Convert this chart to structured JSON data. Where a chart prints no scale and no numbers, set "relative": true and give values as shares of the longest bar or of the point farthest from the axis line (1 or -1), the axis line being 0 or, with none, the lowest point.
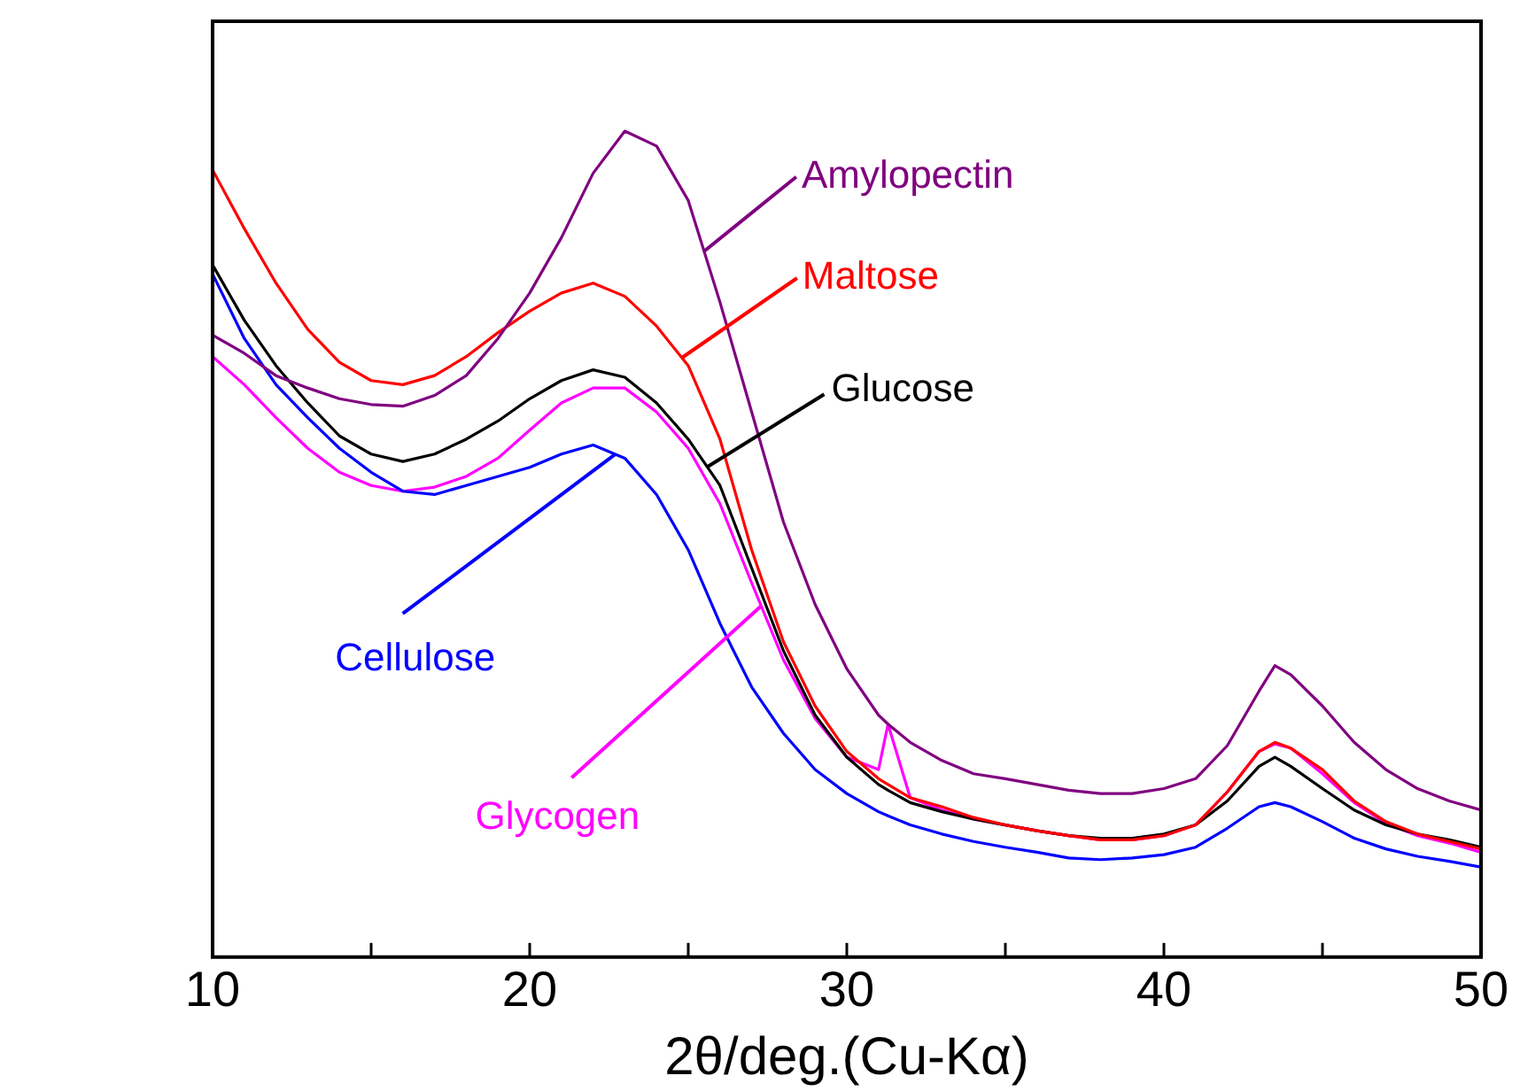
{
  "chart_data": {
    "type": "line",
    "xlabel": "2θ/deg.(Cu-Kα)",
    "relative": true,
    "grid": false,
    "legend": false,
    "marker": "none",
    "line_style": "solid",
    "tick_labels": "x",
    "xlim": [
      10,
      50
    ],
    "xticks": [
      10,
      {
        "value": 15,
        "label": null
      },
      20,
      {
        "value": 25,
        "label": null
      },
      30,
      {
        "value": 35,
        "label": null
      },
      40,
      {
        "value": 45,
        "label": null
      },
      50
    ],
    "x": [
      10,
      11,
      12,
      13,
      14,
      15,
      16,
      17,
      18,
      19,
      20,
      21,
      22,
      23,
      24,
      25,
      26,
      27,
      28,
      29,
      30,
      31,
      31.3,
      32,
      33,
      34,
      35,
      36,
      37,
      38,
      39,
      40,
      41,
      42,
      43,
      43.5,
      44,
      45,
      46,
      47,
      48,
      49,
      50
    ],
    "series": [
      {
        "name": "Amylopectin",
        "color": "#800080",
        "values": [
          0.753,
          0.731,
          0.704,
          0.689,
          0.676,
          0.669,
          0.667,
          0.68,
          0.704,
          0.749,
          0.804,
          0.871,
          0.949,
          1,
          0.982,
          0.916,
          0.793,
          0.66,
          0.527,
          0.427,
          0.349,
          0.293,
          0.282,
          0.26,
          0.238,
          0.222,
          0.216,
          0.209,
          0.202,
          0.198,
          0.198,
          0.204,
          0.216,
          0.256,
          0.322,
          0.353,
          0.342,
          0.304,
          0.26,
          0.227,
          0.204,
          0.189,
          0.178
        ]
      },
      {
        "name": "Maltose",
        "color": "#ff0000",
        "values": [
          0.953,
          0.882,
          0.816,
          0.76,
          0.72,
          0.698,
          0.693,
          0.704,
          0.727,
          0.756,
          0.782,
          0.804,
          0.816,
          0.8,
          0.764,
          0.716,
          0.627,
          0.493,
          0.382,
          0.304,
          0.249,
          0.216,
          0.209,
          0.193,
          0.182,
          0.169,
          0.16,
          0.153,
          0.147,
          0.142,
          0.142,
          0.147,
          0.16,
          0.2,
          0.249,
          0.26,
          0.253,
          0.227,
          0.189,
          0.164,
          0.149,
          0.14,
          0.131
        ]
      },
      {
        "name": "Glucose",
        "color": "#000000",
        "values": [
          0.838,
          0.771,
          0.716,
          0.671,
          0.631,
          0.609,
          0.6,
          0.609,
          0.627,
          0.649,
          0.676,
          0.698,
          0.711,
          0.702,
          0.671,
          0.627,
          0.571,
          0.471,
          0.371,
          0.293,
          0.242,
          0.209,
          0.202,
          0.187,
          0.176,
          0.167,
          0.16,
          0.153,
          0.147,
          0.144,
          0.144,
          0.149,
          0.16,
          0.189,
          0.231,
          0.242,
          0.231,
          0.204,
          0.178,
          0.16,
          0.149,
          0.142,
          0.133
        ]
      },
      {
        "name": "Cellulose",
        "color": "#0000ff",
        "values": [
          0.827,
          0.749,
          0.693,
          0.653,
          0.616,
          0.587,
          0.564,
          0.56,
          0.571,
          0.582,
          0.593,
          0.609,
          0.62,
          0.604,
          0.56,
          0.493,
          0.404,
          0.327,
          0.271,
          0.227,
          0.198,
          0.176,
          0.171,
          0.16,
          0.149,
          0.14,
          0.133,
          0.127,
          0.12,
          0.118,
          0.12,
          0.124,
          0.133,
          0.156,
          0.182,
          0.187,
          0.182,
          0.164,
          0.144,
          0.131,
          0.122,
          0.116,
          0.109
        ]
      },
      {
        "name": "Glycogen",
        "color": "#ff00ff",
        "values": [
          0.727,
          0.693,
          0.653,
          0.616,
          0.587,
          0.571,
          0.564,
          0.569,
          0.582,
          0.604,
          0.638,
          0.671,
          0.689,
          0.689,
          0.66,
          0.616,
          0.549,
          0.453,
          0.36,
          0.289,
          0.242,
          0.227,
          0.282,
          0.193,
          0.178,
          0.167,
          0.16,
          0.153,
          0.147,
          0.142,
          0.142,
          0.147,
          0.16,
          0.2,
          0.249,
          0.258,
          0.253,
          0.222,
          0.187,
          0.162,
          0.147,
          0.138,
          0.127
        ]
      }
    ]
  }
}
